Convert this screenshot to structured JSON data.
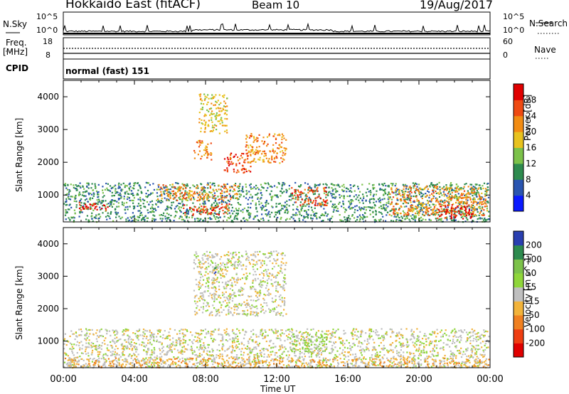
{
  "header": {
    "title": "Hokkaido East (fitACF)",
    "beam": "Beam 10",
    "date": "19/Aug/2017"
  },
  "strips": {
    "nsky_label": "N.Sky",
    "nsky_ticks": [
      "10^5",
      "10^0"
    ],
    "nsearch_label": "N.Search",
    "freq_label_1": "Freq.",
    "freq_label_2": "[MHz]",
    "freq_ticks": [
      "18",
      "8"
    ],
    "nave_ticks": [
      "60",
      "0"
    ],
    "nave_label": "Nave",
    "cpid_label": "CPID",
    "cpid_value": "normal (fast) 151"
  },
  "chart_data": [
    {
      "type": "heatmap",
      "name": "power",
      "ylabel": "Slant Range [km]",
      "ylim": [
        180,
        4500
      ],
      "yticks": [
        1000,
        2000,
        3000,
        4000
      ],
      "colorbar": {
        "label": "Power [dB]",
        "ticks": [
          4,
          8,
          12,
          16,
          20,
          24,
          28
        ],
        "colors": [
          "#0a1aff",
          "#2a55b0",
          "#2e8b4f",
          "#7cc24a",
          "#e8c21e",
          "#f28c13",
          "#ef4a12",
          "#e00000"
        ]
      },
      "regions": [
        {
          "t0": 0.0,
          "t1": 23.9,
          "r0": 200,
          "r1": 1400,
          "level": 2
        },
        {
          "t0": 0.8,
          "t1": 2.6,
          "r0": 560,
          "r1": 800,
          "level": 7
        },
        {
          "t0": 5.2,
          "t1": 9.8,
          "r0": 850,
          "r1": 1350,
          "level": 5
        },
        {
          "t0": 6.7,
          "t1": 9.3,
          "r0": 400,
          "r1": 750,
          "level": 6
        },
        {
          "t0": 7.3,
          "t1": 8.3,
          "r0": 2100,
          "r1": 2700,
          "level": 5
        },
        {
          "t0": 7.6,
          "t1": 9.2,
          "r0": 2900,
          "r1": 4100,
          "level": 4
        },
        {
          "t0": 9.0,
          "t1": 10.5,
          "r0": 1700,
          "r1": 2300,
          "level": 6
        },
        {
          "t0": 10.2,
          "t1": 12.5,
          "r0": 2000,
          "r1": 2900,
          "level": 5
        },
        {
          "t0": 12.8,
          "t1": 14.8,
          "r0": 700,
          "r1": 1250,
          "level": 6
        },
        {
          "t0": 18.3,
          "t1": 23.8,
          "r0": 400,
          "r1": 1300,
          "level": 5
        },
        {
          "t0": 21.0,
          "t1": 23.0,
          "r0": 300,
          "r1": 800,
          "level": 7
        }
      ]
    },
    {
      "type": "heatmap",
      "name": "velocity",
      "ylabel": "Slant Range [km]",
      "ylim": [
        180,
        4500
      ],
      "yticks": [
        1000,
        2000,
        3000,
        4000
      ],
      "xticks": [
        "00:00",
        "04:00",
        "08:00",
        "12:00",
        "16:00",
        "20:00",
        "00:00"
      ],
      "xlabel": "Time UT",
      "colorbar": {
        "label": "Velocity [m s^-1]",
        "ticks": [
          200,
          100,
          50,
          15,
          -15,
          -50,
          -100,
          -200
        ],
        "colors": [
          "#2a3fb0",
          "#2e8b4f",
          "#7cc24a",
          "#8fd63a",
          "#bfbfbf",
          "#f2b33a",
          "#f08020",
          "#ef3e12",
          "#e00000"
        ]
      },
      "regions": [
        {
          "t0": 0.0,
          "t1": 23.9,
          "r0": 200,
          "r1": 1400,
          "level": 4
        },
        {
          "t0": 7.3,
          "t1": 12.5,
          "r0": 1800,
          "r1": 3800,
          "level": 4
        },
        {
          "t0": 12.8,
          "t1": 14.8,
          "r0": 700,
          "r1": 1250,
          "level": 3
        },
        {
          "t0": 8.4,
          "t1": 8.6,
          "r0": 3000,
          "r1": 3300,
          "level": 0
        },
        {
          "t0": 0.0,
          "t1": 23.9,
          "r0": 200,
          "r1": 500,
          "level": 5
        }
      ]
    }
  ]
}
